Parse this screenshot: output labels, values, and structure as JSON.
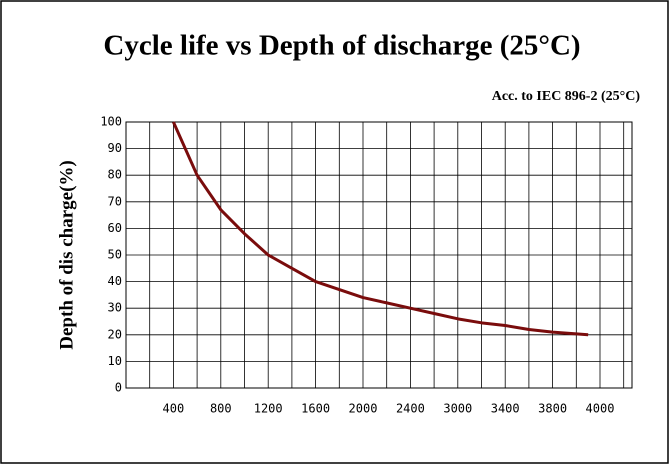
{
  "chart_data": {
    "type": "line",
    "title": "Cycle life vs Depth of discharge (25°C)",
    "subtitle": "Acc. to IEC 896-2  (25°C)",
    "y_label": "Depth of dis charge(%)",
    "x": [
      400,
      600,
      800,
      1000,
      1200,
      1400,
      1600,
      1800,
      2000,
      2200,
      2400,
      2700,
      3000,
      3200,
      3400,
      3600,
      3800,
      3950
    ],
    "series": [
      {
        "name": "Depth of discharge",
        "color": "#7a0c0c",
        "values": [
          100,
          80,
          67,
          58,
          50,
          45,
          40,
          37,
          34,
          32,
          30,
          28,
          26,
          24.5,
          23.5,
          22,
          21,
          20
        ]
      }
    ],
    "xlim": [
      0,
      4000
    ],
    "xticks": [
      400,
      800,
      1200,
      1600,
      2000,
      2400,
      3000,
      3400,
      3800,
      4000
    ],
    "ylim": [
      0,
      100
    ],
    "yticks": [
      0,
      10,
      20,
      30,
      40,
      50,
      60,
      70,
      80,
      90,
      100
    ],
    "grid": true
  }
}
